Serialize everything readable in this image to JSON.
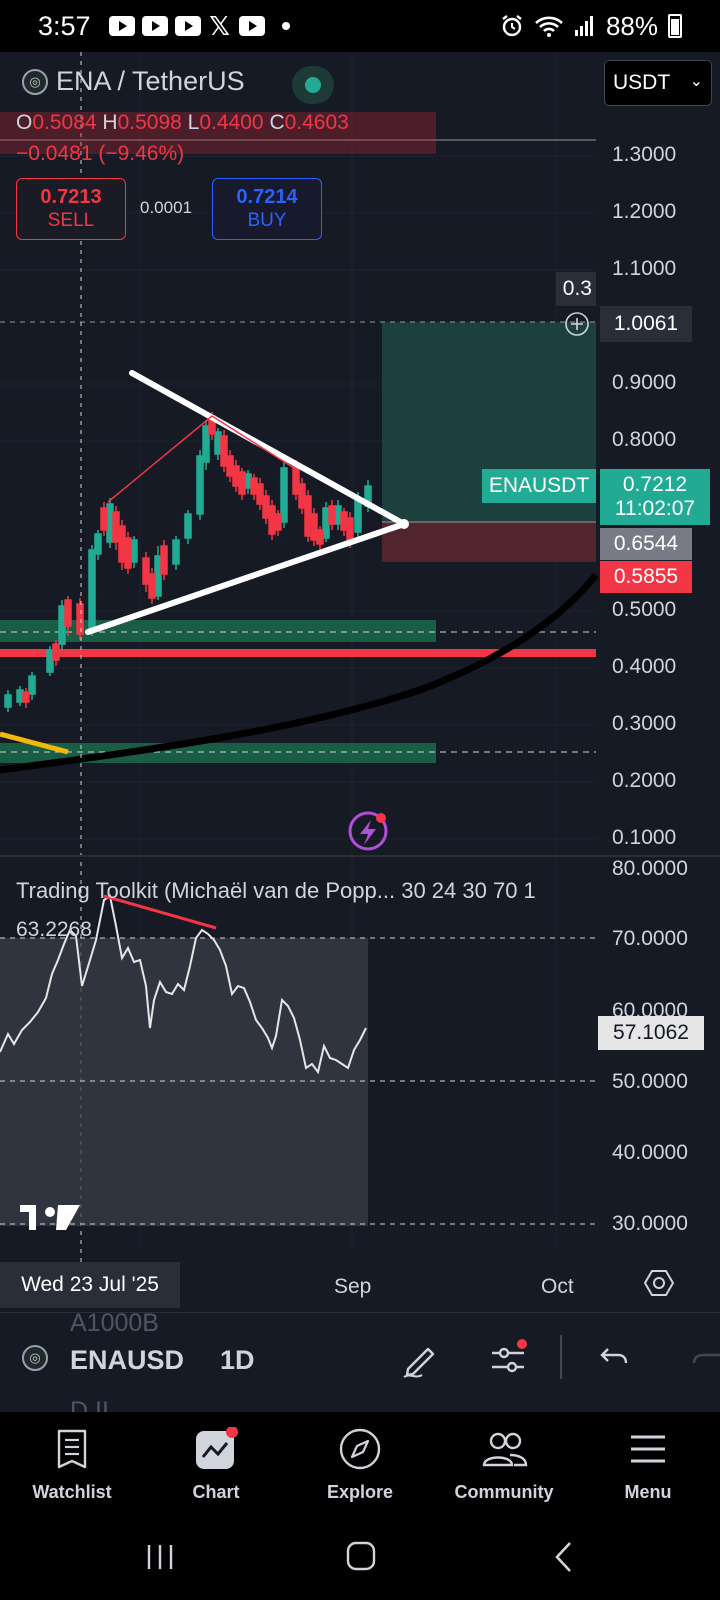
{
  "status_bar": {
    "time": "3:57",
    "battery": "88%"
  },
  "header": {
    "symbol_title": "ENA / TetherUS",
    "currency": "USDT"
  },
  "ohlc": {
    "o_label": "O",
    "o": "0.5084",
    "h_label": "H",
    "h": "0.5098",
    "l_label": "L",
    "l": "0.4400",
    "c_label": "C",
    "c": "0.4603",
    "change": "−0.0481 (−9.46%)"
  },
  "trade": {
    "sell_price": "0.7213",
    "sell_label": "SELL",
    "buy_price": "0.7214",
    "buy_label": "BUY",
    "spread": "0.0001"
  },
  "price_tags": {
    "target": "1.0061",
    "target_partial": "0.3",
    "symbol_tag": "ENAUSDT",
    "last_price": "0.7212",
    "countdown": "11:02:07",
    "entry": "0.6544",
    "stop": "0.5855",
    "oscillator": "57.1062"
  },
  "price_axis": [
    "1.3000",
    "1.2000",
    "1.1000",
    "0.9000",
    "0.8000",
    "0.5000",
    "0.4000",
    "0.3000",
    "0.2000",
    "0.1000"
  ],
  "oscillator_axis": [
    "80.0000",
    "70.0000",
    "60.0000",
    "50.0000",
    "40.0000",
    "30.0000"
  ],
  "toolkit": {
    "title": "Trading Toolkit (Michaël van de Popp... 30 24 30 70 1",
    "value": "63.2268"
  },
  "time_axis": {
    "selected_date": "Wed 23 Jul '25",
    "labels": [
      "Sep",
      "Oct"
    ]
  },
  "toolbar": {
    "symbol": "ENAUSD",
    "interval": "1D",
    "ghost_top": "A1000B",
    "ghost_bottom": "D.II"
  },
  "bottom_nav": [
    {
      "label": "Watchlist",
      "icon": "watchlist-icon"
    },
    {
      "label": "Chart",
      "icon": "chart-icon"
    },
    {
      "label": "Explore",
      "icon": "compass-icon"
    },
    {
      "label": "Community",
      "icon": "community-icon"
    },
    {
      "label": "Menu",
      "icon": "menu-icon"
    }
  ],
  "colors": {
    "background": "#161a25",
    "up": "#22ab94",
    "down": "#f23645",
    "buy_blue": "#2962ff"
  }
}
